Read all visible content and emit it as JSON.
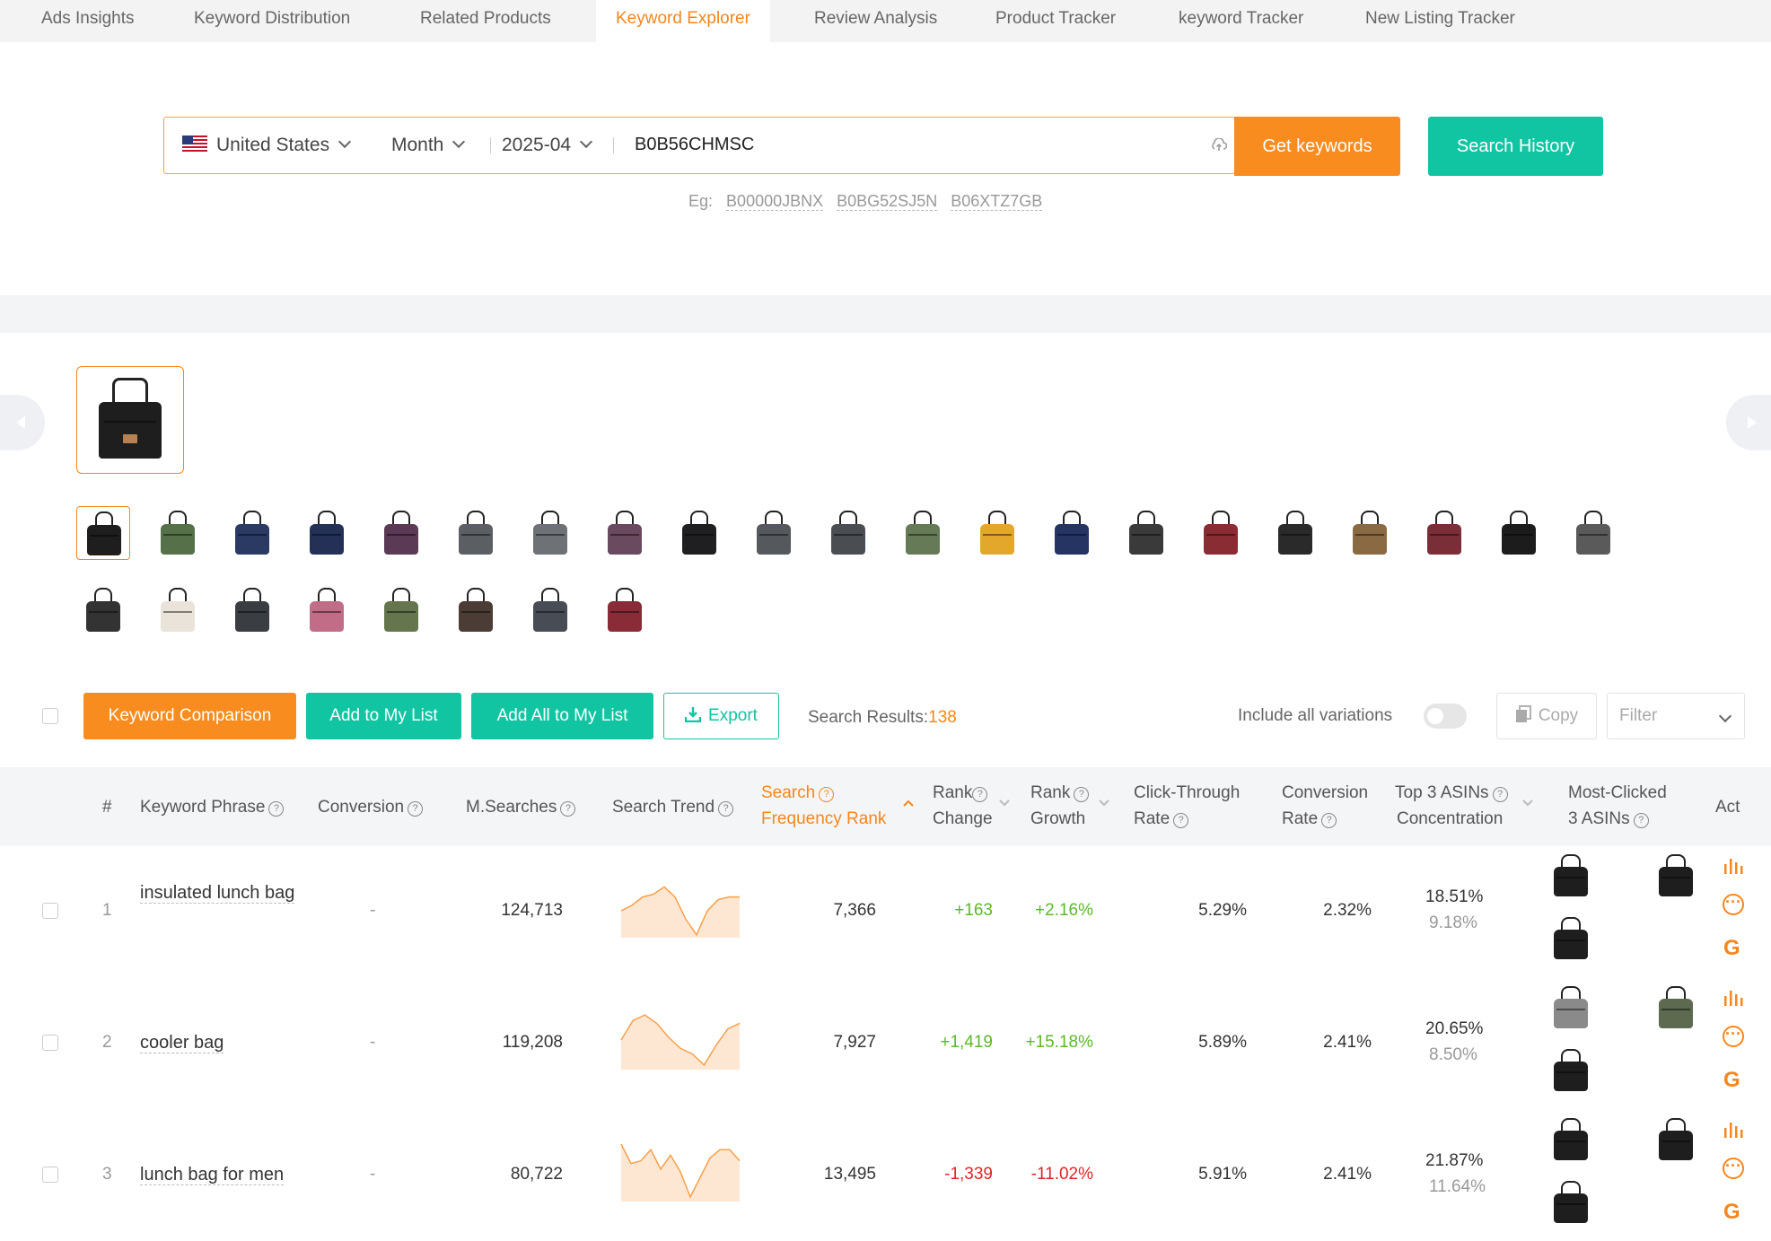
{
  "tabs": [
    "Ads Insights",
    "Keyword Distribution",
    "Related Products",
    "Keyword Explorer",
    "Review Analysis",
    "Product Tracker",
    "keyword Tracker",
    "New Listing Tracker"
  ],
  "active_tab": "Keyword Explorer",
  "search": {
    "country": "United States",
    "period": "Month",
    "date": "2025-04",
    "query": "B0B56CHMSC",
    "get_keywords_label": "Get keywords",
    "history_label": "Search History",
    "examples_label": "Eg:",
    "examples": [
      "B00000JBNX",
      "B0BG52SJ5N",
      "B06XTZ7GB"
    ]
  },
  "variant_colors": [
    "#1e1e1e",
    "#56704a",
    "#2b3a63",
    "#243056",
    "#5a3a55",
    "#5b5f63",
    "#6e7175",
    "#6a4a5e",
    "#1f1f22",
    "#55585c",
    "#4a4d52",
    "#667a58",
    "#e3a82b",
    "#253463",
    "#3a3a3a",
    "#8a2c34",
    "#2a2a2a",
    "#8a6a43",
    "#7a2f38",
    "#1c1c1c",
    "#5a5a5a",
    "#333333",
    "#e9e3da",
    "#3a3d42",
    "#c26d88",
    "#65764e",
    "#4b3c35",
    "#474c55",
    "#8a2c38"
  ],
  "toolbar": {
    "compare_label": "Keyword Comparison",
    "add_label": "Add to My List",
    "add_all_label": "Add All to My List",
    "export_label": "Export",
    "results_label": "Search Results:",
    "results_count": "138",
    "include_label": "Include all variations",
    "copy_label": "Copy",
    "filter_placeholder": "Filter"
  },
  "columns": {
    "num": "#",
    "keyword": "Keyword Phrase",
    "conversion": "Conversion",
    "searches": "M.Searches",
    "trend": "Search Trend",
    "sfr_1": "Search",
    "sfr_2": "Frequency Rank",
    "rank_change_1": "Rank",
    "rank_change_2": "Change",
    "rank_growth_1": "Rank",
    "rank_growth_2": "Growth",
    "ctr_1": "Click-Through",
    "ctr_2": "Rate",
    "conv_rate_1": "Conversion",
    "conv_rate_2": "Rate",
    "top3_1": "Top 3 ASINs",
    "top3_2": "Concentration",
    "most_1": "Most-Clicked",
    "most_2": "3 ASINs",
    "act": "Act"
  },
  "rows": [
    {
      "num": "1",
      "keyword": "insulated lunch bag",
      "conversion": "-",
      "searches": "124,713",
      "trend": [
        0.55,
        0.45,
        0.3,
        0.25,
        0.12,
        0.3,
        0.7,
        0.98,
        0.55,
        0.35,
        0.3,
        0.3
      ],
      "sfr": "7,366",
      "rank_change": "+163",
      "rank_growth": "+2.16%",
      "ctr": "5.29%",
      "conv_rate": "2.32%",
      "top3_a": "18.51%",
      "top3_b": "9.18%"
    },
    {
      "num": "2",
      "keyword": "cooler bag",
      "conversion": "-",
      "searches": "119,208",
      "trend": [
        0.5,
        0.15,
        0.05,
        0.2,
        0.45,
        0.65,
        0.75,
        0.95,
        0.6,
        0.3,
        0.2
      ],
      "sfr": "7,927",
      "rank_change": "+1,419",
      "rank_growth": "+15.18%",
      "ctr": "5.89%",
      "conv_rate": "2.41%",
      "top3_a": "20.65%",
      "top3_b": "8.50%"
    },
    {
      "num": "3",
      "keyword": "lunch bag for men",
      "conversion": "-",
      "searches": "80,722",
      "trend": [
        0.0,
        0.35,
        0.3,
        0.1,
        0.45,
        0.2,
        0.5,
        0.95,
        0.6,
        0.25,
        0.1,
        0.1,
        0.3
      ],
      "sfr": "13,495",
      "rank_change": "-1,339",
      "rank_growth": "-11.02%",
      "ctr": "5.91%",
      "conv_rate": "2.41%",
      "top3_a": "21.87%",
      "top3_b": "11.64%"
    }
  ],
  "colors": {
    "accent": "#f7861c",
    "teal": "#11c5a3",
    "positive": "#5cb82a",
    "negative": "#e02424"
  }
}
